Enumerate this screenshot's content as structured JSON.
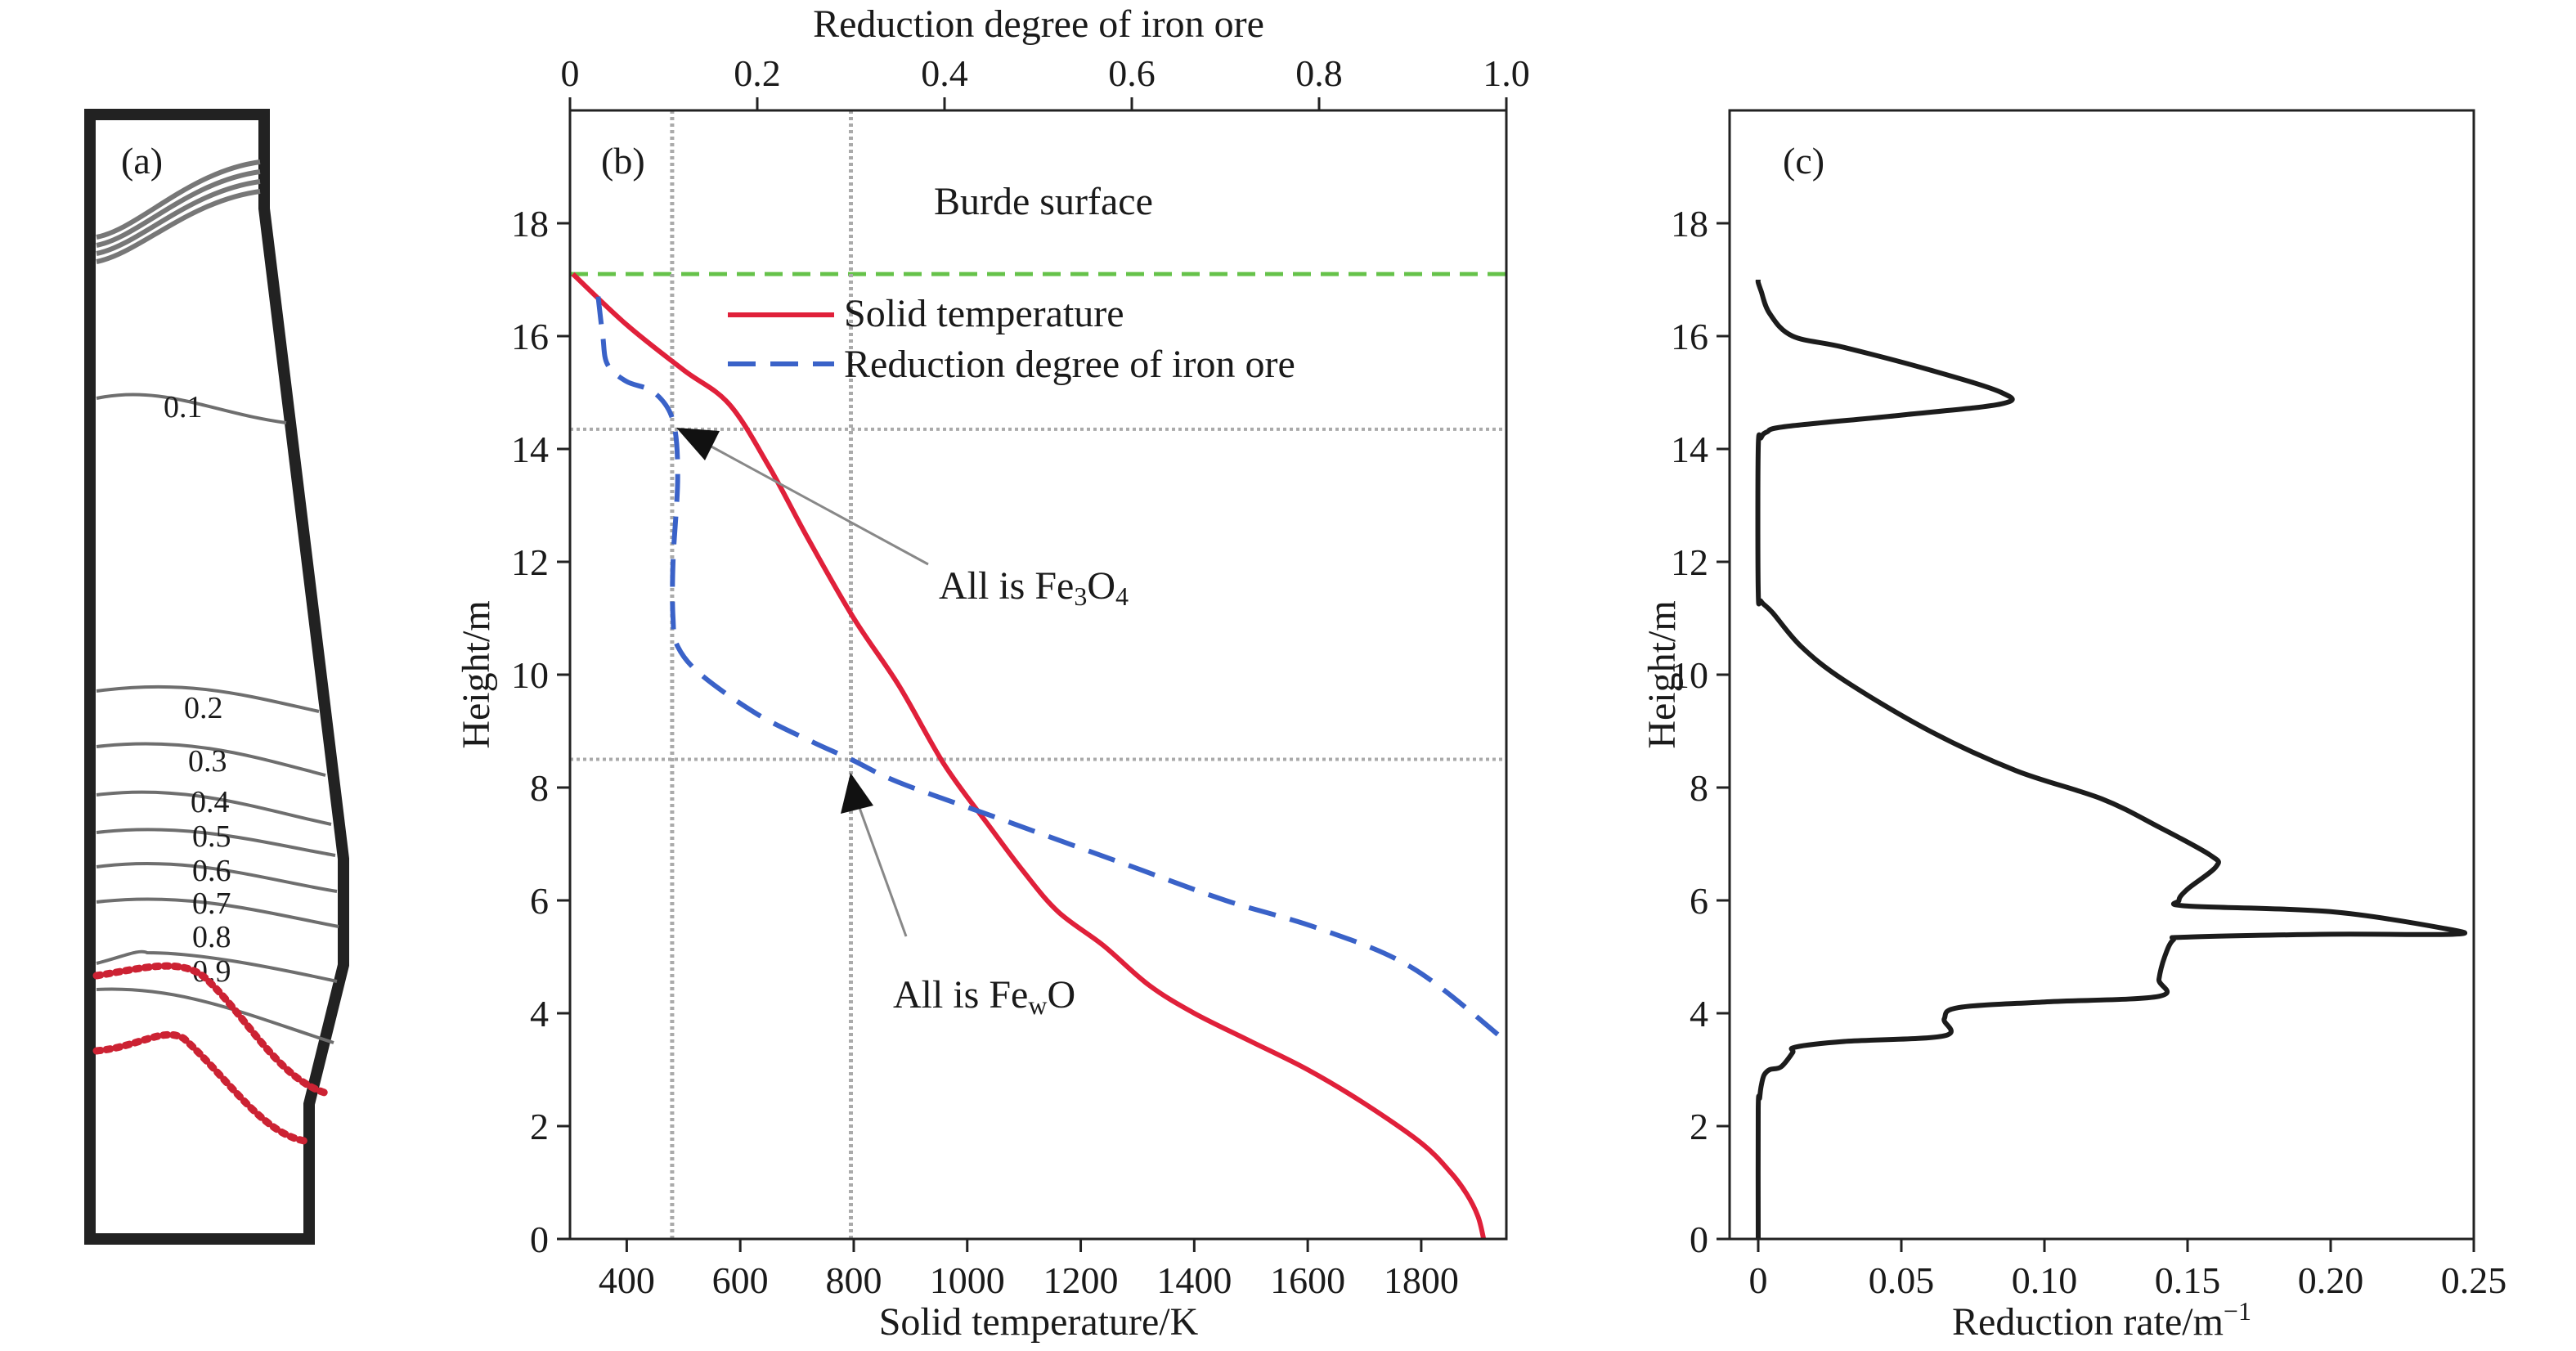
{
  "panel_a": {
    "tag": "(a)",
    "contour_labels": [
      "0.1",
      "0.2",
      "0.3",
      "0.4",
      "0.5",
      "0.6",
      "0.7",
      "0.8",
      "0.9"
    ],
    "colors": {
      "outline": "#222222",
      "contour": "#6e6e6e",
      "dotted": "#cc2233",
      "burden": "#777777"
    }
  },
  "panel_b": {
    "tag": "(b)",
    "annotations": {
      "burden": "Burde surface",
      "fe3o4_prefix": "All is Fe",
      "fe3o4_sub1": "3",
      "fe3o4_mid": "O",
      "fe3o4_sub2": "4",
      "fewo_prefix": "All is Fe",
      "fewo_sub": "w",
      "fewo_suffix": "O"
    },
    "colors": {
      "solid": "#e0203a",
      "reduction": "#3a62c8",
      "burden_line": "#66c24a",
      "ref_line": "#aaaaaa"
    }
  },
  "panel_c": {
    "tag": "(c)",
    "colors": {
      "line": "#1c1c1c"
    }
  },
  "chart_data": [
    {
      "type": "line",
      "panel": "b",
      "xlabel": "Solid temperature/K",
      "x2label": "Reduction degree of iron ore",
      "ylabel": "Height/m",
      "xlim": [
        300,
        1950
      ],
      "x2lim": [
        0,
        1.0
      ],
      "ylim": [
        0,
        20
      ],
      "xticks": [
        400,
        600,
        800,
        1000,
        1200,
        1400,
        1600,
        1800
      ],
      "x2ticks": [
        "0",
        "0.2",
        "0.4",
        "0.6",
        "0.8",
        "1.0"
      ],
      "yticks": [
        0,
        2,
        4,
        6,
        8,
        10,
        12,
        14,
        16,
        18
      ],
      "legend": [
        "Solid temperature",
        "Reduction degree of iron ore"
      ],
      "series": [
        {
          "name": "Solid temperature",
          "axis": "bottom",
          "x": [
            305,
            400,
            500,
            580,
            650,
            720,
            800,
            880,
            960,
            1040,
            1100,
            1160,
            1240,
            1320,
            1400,
            1500,
            1600,
            1700,
            1800,
            1850,
            1880,
            1900,
            1910
          ],
          "y": [
            17.1,
            16.2,
            15.4,
            14.8,
            13.7,
            12.4,
            11.0,
            9.8,
            8.4,
            7.3,
            6.5,
            5.8,
            5.2,
            4.5,
            4.0,
            3.5,
            3.0,
            2.4,
            1.7,
            1.2,
            0.8,
            0.4,
            0
          ]
        },
        {
          "name": "Reduction degree of iron ore",
          "axis": "top",
          "x": [
            0.03,
            0.035,
            0.04,
            0.06,
            0.09,
            0.11,
            0.115,
            0.11,
            0.11,
            0.115,
            0.14,
            0.2,
            0.26,
            0.3,
            0.35,
            0.45,
            0.6,
            0.7,
            0.8,
            0.9,
            1.0
          ],
          "y": [
            16.7,
            16.0,
            15.5,
            15.2,
            15.0,
            14.5,
            13.5,
            12.0,
            11.0,
            10.5,
            10.0,
            9.3,
            8.8,
            8.5,
            8.1,
            7.5,
            6.6,
            6.0,
            5.5,
            4.8,
            3.5
          ]
        }
      ],
      "reference_lines": {
        "horizontal": [
          17.1,
          14.35,
          8.5
        ],
        "vertical": [
          480,
          795
        ]
      },
      "annotations": [
        "Burde surface",
        "All is Fe3O4",
        "All is FewO"
      ]
    },
    {
      "type": "line",
      "panel": "c",
      "xlabel": "Reduction rate/m",
      "xlabel_sup": "−1",
      "ylabel": "Height/m",
      "xlim": [
        -0.01,
        0.25
      ],
      "ylim": [
        0,
        20
      ],
      "xticks": [
        "0",
        "0.05",
        "0.10",
        "0.15",
        "0.20",
        "0.25"
      ],
      "yticks": [
        0,
        2,
        4,
        6,
        8,
        10,
        12,
        14,
        16,
        18
      ],
      "series": [
        {
          "x": [
            0,
            0,
            0.0005,
            0.001,
            0.002,
            0.004,
            0.008,
            0.012,
            0.013,
            0.03,
            0.065,
            0.065,
            0.07,
            0.1,
            0.14,
            0.14,
            0.142,
            0.145,
            0.15,
            0.2,
            0.243,
            0.24,
            0.2,
            0.15,
            0.147,
            0.15,
            0.16,
            0.158,
            0.14,
            0.12,
            0.09,
            0.06,
            0.03,
            0.015,
            0.005,
            0.001,
            0,
            0,
            0.001,
            0.003,
            0.01,
            0.05,
            0.085,
            0.085,
            0.06,
            0.03,
            0.012,
            0.004,
            0.001,
            0,
            0
          ],
          "y": [
            0,
            2.3,
            2.5,
            2.7,
            2.9,
            3.0,
            3.05,
            3.3,
            3.4,
            3.5,
            3.6,
            3.9,
            4.1,
            4.2,
            4.3,
            4.6,
            5.0,
            5.3,
            5.35,
            5.4,
            5.4,
            5.5,
            5.8,
            5.9,
            6.0,
            6.2,
            6.6,
            6.8,
            7.3,
            7.8,
            8.3,
            9.0,
            9.9,
            10.5,
            11.1,
            11.3,
            11.5,
            14.0,
            14.2,
            14.3,
            14.4,
            14.6,
            14.8,
            15.0,
            15.4,
            15.8,
            16.0,
            16.4,
            16.8,
            16.95,
            17.0
          ]
        }
      ]
    }
  ]
}
